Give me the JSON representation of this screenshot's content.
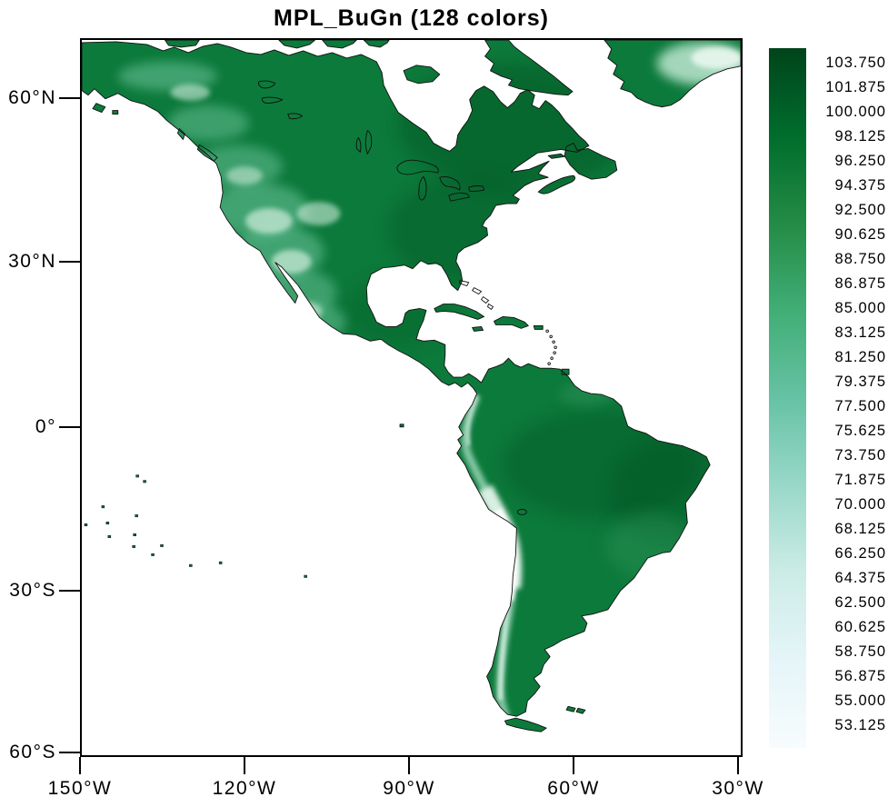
{
  "title": "MPL_BuGn (128 colors)",
  "y_axis": {
    "labels": [
      "60°N",
      "30°N",
      "0°",
      "30°S",
      "60°S"
    ]
  },
  "x_axis": {
    "labels": [
      "150°W",
      "120°W",
      "90°W",
      "60°W",
      "30°W"
    ]
  },
  "colorbar": {
    "labels": [
      "103.750",
      "101.875",
      "100.000",
      "98.125",
      "96.250",
      "94.375",
      "92.500",
      "90.625",
      "88.750",
      "86.875",
      "85.000",
      "83.125",
      "81.250",
      "79.375",
      "77.500",
      "75.625",
      "73.750",
      "71.875",
      "70.000",
      "68.125",
      "66.250",
      "64.375",
      "62.500",
      "60.625",
      "58.750",
      "56.875",
      "55.000",
      "53.125"
    ],
    "gradient_top_to_bottom": [
      "#00441b",
      "#006d2c",
      "#238b45",
      "#41ae76",
      "#66c2a4",
      "#99d8c9",
      "#ccece6",
      "#e5f5f9",
      "#f7fcfd"
    ]
  },
  "map_colors": {
    "ocean": "#ffffff",
    "land_base": "#0c7a3b",
    "land_dark": "#004a1e",
    "mountain_light": "#d2eede",
    "mountain_bright": "#ffffff",
    "coastline": "#101010"
  },
  "chart_data": {
    "type": "heatmap",
    "title": "MPL_BuGn (128 colors)",
    "colormap_name": "MPL_BuGn",
    "colormap_n_colors": 128,
    "colormap_hex_low_to_high": [
      "#f7fcfd",
      "#e5f5f9",
      "#ccece6",
      "#99d8c9",
      "#66c2a4",
      "#41ae76",
      "#238b45",
      "#006d2c",
      "#00441b"
    ],
    "geo_region": "North and South America (Greenland tip at top right)",
    "x_tick_labels": [
      "150°W",
      "120°W",
      "90°W",
      "60°W",
      "30°W"
    ],
    "y_tick_labels": [
      "60°N",
      "30°N",
      "0°",
      "30°S",
      "60°S"
    ],
    "colorbar_orientation": "vertical, right side",
    "colorbar_labels": [
      103.75,
      101.875,
      100.0,
      98.125,
      96.25,
      94.375,
      92.5,
      90.625,
      88.75,
      86.875,
      85.0,
      83.125,
      81.25,
      79.375,
      77.5,
      75.625,
      73.75,
      71.875,
      70.0,
      68.125,
      66.25,
      64.375,
      62.5,
      60.625,
      58.75,
      56.875,
      55.0,
      53.125
    ],
    "colorbar_max_label": 103.75,
    "colorbar_min_label": 53.125,
    "colorbar_step": 1.875,
    "shading_notes": "Data shaded over land only; ocean and large bays are white. High values (dark green ~100+) over most lowland terrain; low pale values along high terrain: Andes (brightest, near-white), western North America cordillera, Mexican altiplano, Alaska ranges and Greenland ice sheet interior. Coastlines and lake outlines drawn in black."
  }
}
